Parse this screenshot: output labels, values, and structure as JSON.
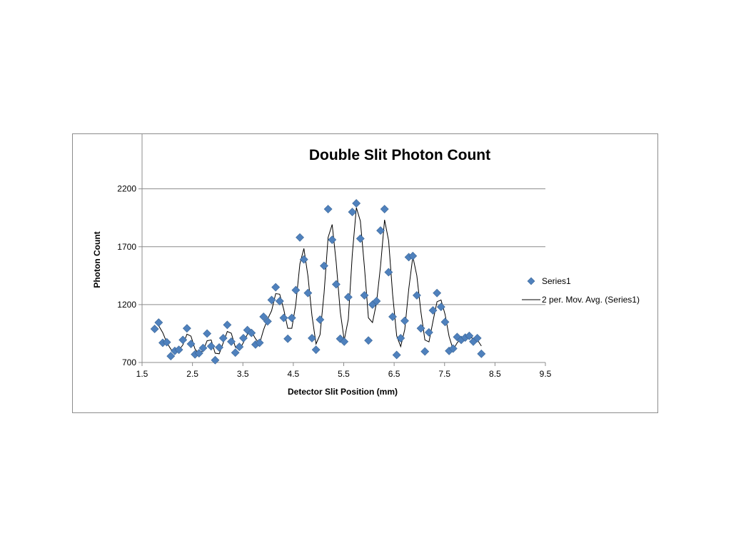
{
  "chart_data": {
    "type": "scatter",
    "title": "Double Slit Photon Count",
    "xlabel": "Detector Slit Position (mm)",
    "ylabel": "Photon Count",
    "xlim": [
      1.5,
      9.5
    ],
    "ylim": [
      700,
      2500
    ],
    "x_ticks": [
      "1.5",
      "2.5",
      "3.5",
      "4.5",
      "5.5",
      "6.5",
      "7.5",
      "8.5",
      "9.5"
    ],
    "y_ticks": [
      "700",
      "1200",
      "1700",
      "2200"
    ],
    "grid": "horizontal",
    "legend_position": "right",
    "colors": {
      "marker": "#4f81bd",
      "marker_edge": "#3a6596",
      "trendline": "#000000",
      "gridline": "#8c8c8c",
      "axis": "#8c8c8c"
    },
    "series": [
      {
        "name": "Series1",
        "marker": "diamond",
        "points": [
          [
            1.75,
            990
          ],
          [
            1.83,
            1045
          ],
          [
            1.91,
            870
          ],
          [
            1.99,
            875
          ],
          [
            2.07,
            755
          ],
          [
            2.15,
            800
          ],
          [
            2.23,
            810
          ],
          [
            2.31,
            895
          ],
          [
            2.39,
            995
          ],
          [
            2.47,
            860
          ],
          [
            2.55,
            770
          ],
          [
            2.63,
            780
          ],
          [
            2.71,
            825
          ],
          [
            2.79,
            950
          ],
          [
            2.87,
            840
          ],
          [
            2.95,
            720
          ],
          [
            3.03,
            830
          ],
          [
            3.11,
            910
          ],
          [
            3.19,
            1025
          ],
          [
            3.27,
            880
          ],
          [
            3.35,
            785
          ],
          [
            3.43,
            835
          ],
          [
            3.51,
            910
          ],
          [
            3.59,
            980
          ],
          [
            3.67,
            955
          ],
          [
            3.75,
            855
          ],
          [
            3.83,
            870
          ],
          [
            3.91,
            1095
          ],
          [
            3.99,
            1055
          ],
          [
            4.07,
            1240
          ],
          [
            4.15,
            1350
          ],
          [
            4.23,
            1230
          ],
          [
            4.31,
            1085
          ],
          [
            4.39,
            905
          ],
          [
            4.47,
            1085
          ],
          [
            4.55,
            1325
          ],
          [
            4.63,
            1780
          ],
          [
            4.71,
            1590
          ],
          [
            4.79,
            1300
          ],
          [
            4.87,
            910
          ],
          [
            4.95,
            810
          ],
          [
            5.03,
            1070
          ],
          [
            5.11,
            1535
          ],
          [
            5.19,
            2025
          ],
          [
            5.27,
            1760
          ],
          [
            5.35,
            1375
          ],
          [
            5.43,
            905
          ],
          [
            5.51,
            880
          ],
          [
            5.59,
            1265
          ],
          [
            5.67,
            2000
          ],
          [
            5.75,
            2075
          ],
          [
            5.83,
            1770
          ],
          [
            5.91,
            1280
          ],
          [
            5.99,
            890
          ],
          [
            6.07,
            1200
          ],
          [
            6.15,
            1230
          ],
          [
            6.23,
            1840
          ],
          [
            6.31,
            2025
          ],
          [
            6.39,
            1480
          ],
          [
            6.47,
            1095
          ],
          [
            6.55,
            765
          ],
          [
            6.63,
            910
          ],
          [
            6.71,
            1060
          ],
          [
            6.79,
            1610
          ],
          [
            6.87,
            1620
          ],
          [
            6.95,
            1280
          ],
          [
            7.03,
            995
          ],
          [
            7.11,
            795
          ],
          [
            7.19,
            960
          ],
          [
            7.27,
            1150
          ],
          [
            7.35,
            1300
          ],
          [
            7.43,
            1180
          ],
          [
            7.51,
            1050
          ],
          [
            7.59,
            800
          ],
          [
            7.67,
            820
          ],
          [
            7.75,
            920
          ],
          [
            7.83,
            895
          ],
          [
            7.91,
            915
          ],
          [
            7.99,
            930
          ],
          [
            8.07,
            880
          ],
          [
            8.15,
            910
          ],
          [
            8.23,
            775
          ]
        ]
      }
    ],
    "trendline": {
      "name": "2 per. Mov. Avg. (Series1)",
      "type": "moving_average",
      "period": 2
    }
  }
}
